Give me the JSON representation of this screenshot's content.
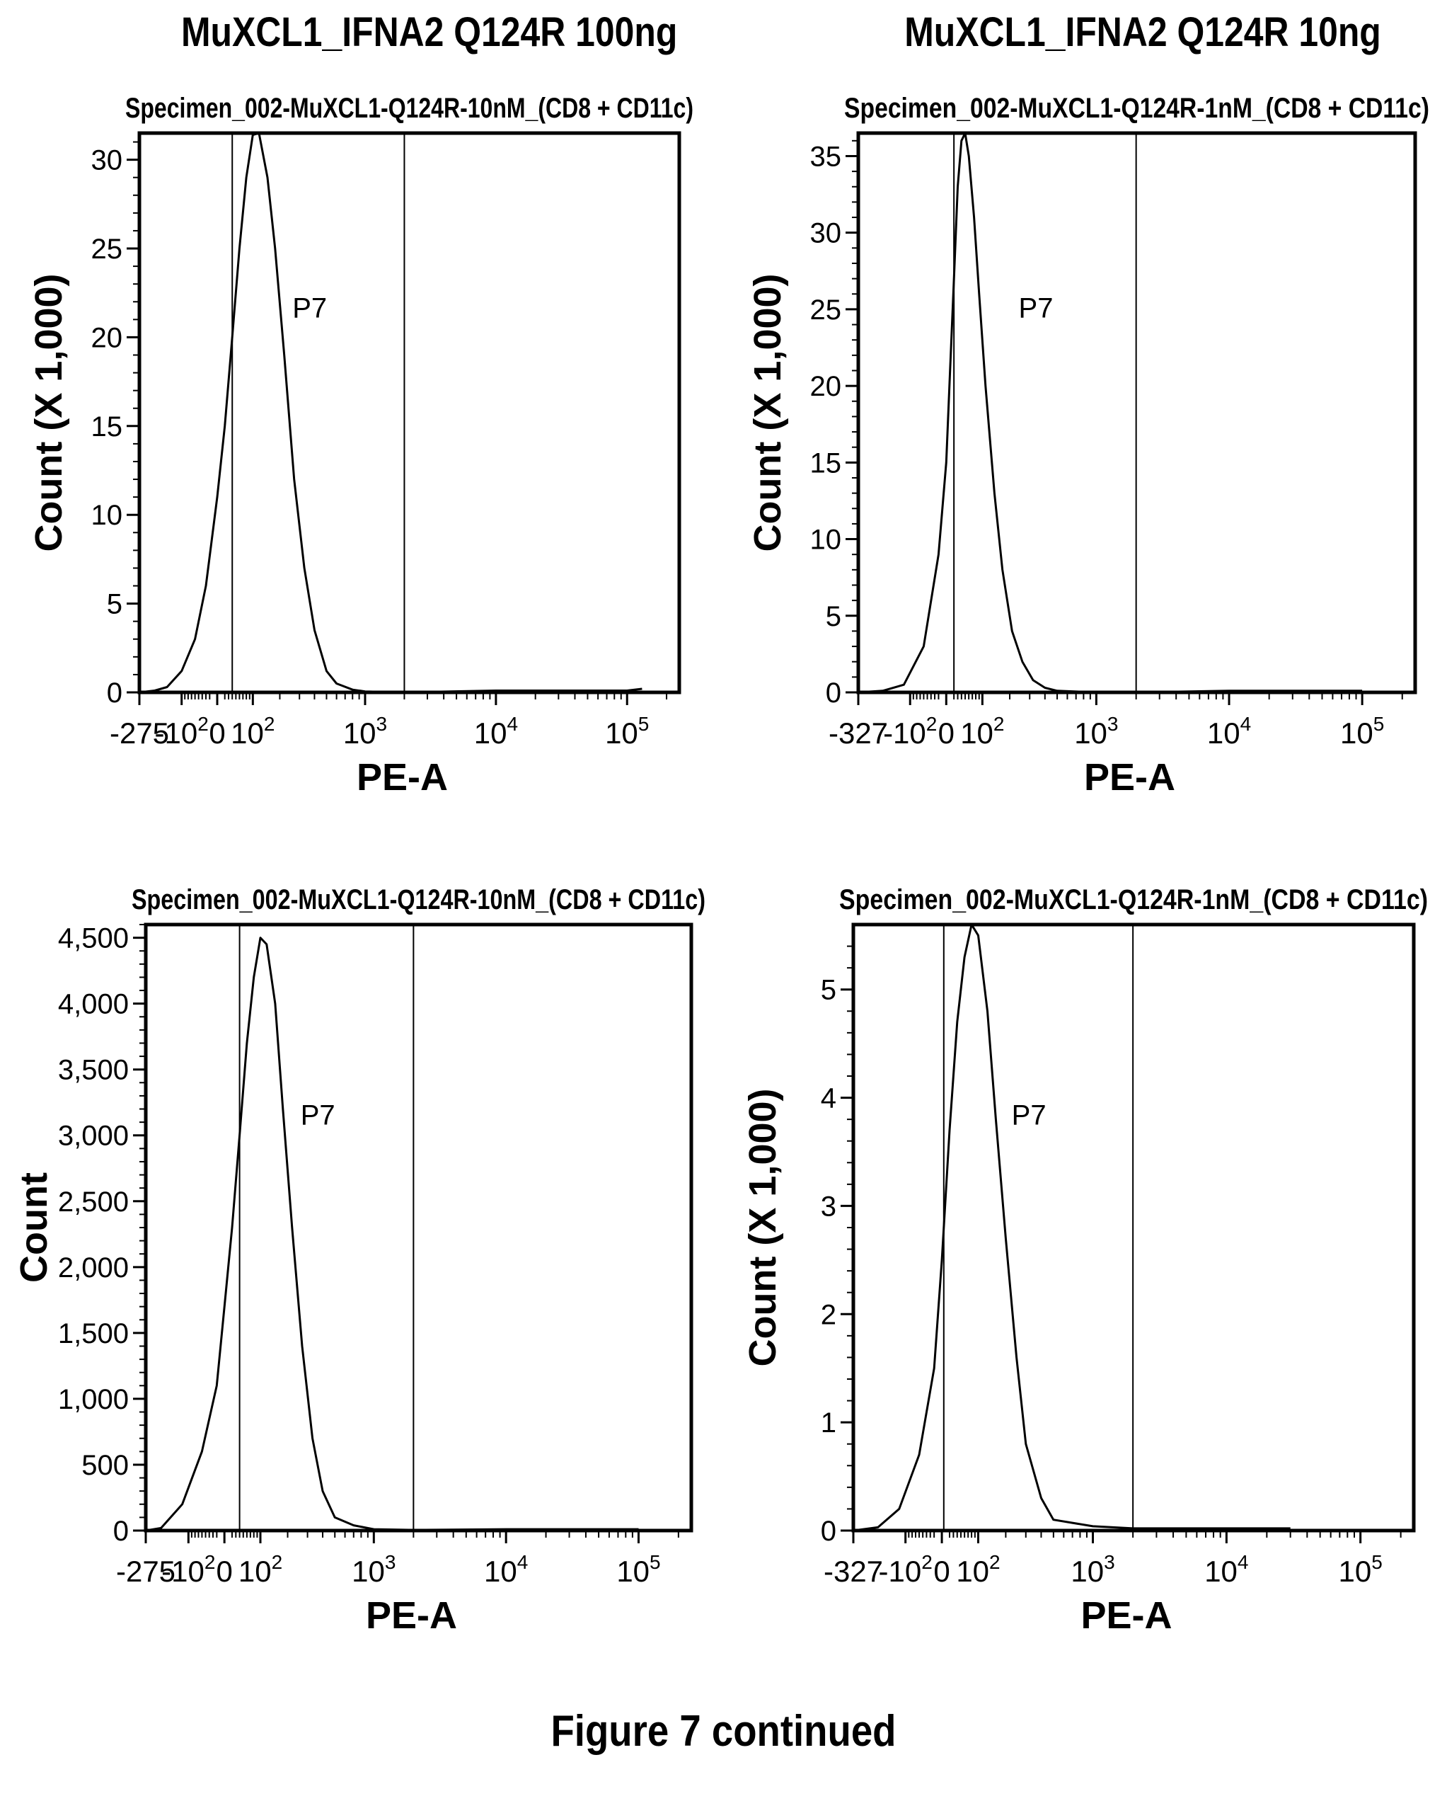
{
  "figure": {
    "column_titles": [
      "MuXCL1_IFNA2 Q124R 100ng",
      "MuXCL1_IFNA2 Q124R 10ng"
    ],
    "caption": "Figure 7 continued"
  },
  "chart_data": [
    {
      "type": "area",
      "title": "Specimen_002-MuXCL1-Q124R-10nM_(CD8 + CD11c)",
      "xlabel": "PE-A",
      "ylabel": "Count (X 1,000)",
      "x_scale": "biexponential",
      "x_tick_labels": [
        "-275",
        "-10^2",
        "0",
        "10^2",
        "10^3",
        "10^4",
        "10^5"
      ],
      "x_tick_values": [
        -275,
        -100,
        0,
        100,
        1000,
        10000,
        100000
      ],
      "xlim": [
        -275,
        250000
      ],
      "ylim": [
        0,
        31.5
      ],
      "y_ticks": [
        0,
        5,
        10,
        15,
        20,
        25,
        30
      ],
      "y_tick_labels": [
        "0",
        "5",
        "10",
        "15",
        "20",
        "25",
        "30"
      ],
      "gate": {
        "name": "P7",
        "x_range": [
          40,
          2000
        ]
      },
      "series": [
        {
          "x": [
            -275,
            -200,
            -150,
            -100,
            -60,
            -30,
            0,
            20,
            40,
            60,
            80,
            100,
            120,
            150,
            180,
            220,
            270,
            330,
            400,
            500,
            600,
            800,
            1000,
            2000,
            10000,
            100000,
            130000
          ],
          "y": [
            0,
            0.1,
            0.3,
            1.2,
            3,
            6,
            11,
            15,
            20,
            25,
            29,
            31.4,
            31.5,
            29,
            25,
            19,
            12,
            7,
            3.5,
            1.2,
            0.5,
            0.15,
            0.05,
            0,
            0.1,
            0.1,
            0.2
          ]
        }
      ]
    },
    {
      "type": "area",
      "title": "Specimen_002-MuXCL1-Q124R-1nM_(CD8 + CD11c)",
      "xlabel": "PE-A",
      "ylabel": "Count (X 1,000)",
      "x_scale": "biexponential",
      "x_tick_labels": [
        "-327",
        "-10^2",
        "0",
        "10^2",
        "10^3",
        "10^4",
        "10^5"
      ],
      "x_tick_values": [
        -327,
        -100,
        0,
        100,
        1000,
        10000,
        100000
      ],
      "xlim": [
        -327,
        250000
      ],
      "ylim": [
        0,
        36.5
      ],
      "y_ticks": [
        0,
        5,
        10,
        15,
        20,
        25,
        30,
        35
      ],
      "y_tick_labels": [
        "0",
        "5",
        "10",
        "15",
        "20",
        "25",
        "30",
        "35"
      ],
      "gate": {
        "name": "P7",
        "x_range": [
          20,
          2000
        ]
      },
      "series": [
        {
          "x": [
            -327,
            -200,
            -120,
            -60,
            -20,
            0,
            10,
            20,
            30,
            40,
            50,
            60,
            75,
            90,
            110,
            140,
            170,
            210,
            260,
            320,
            400,
            500,
            1000,
            2000,
            10000,
            100000
          ],
          "y": [
            0,
            0.1,
            0.5,
            3,
            9,
            15,
            21,
            27,
            33,
            36,
            36.5,
            35,
            31,
            26,
            20,
            13,
            8,
            4,
            2,
            0.8,
            0.3,
            0.1,
            0,
            0,
            0.1,
            0.1
          ]
        }
      ]
    },
    {
      "type": "area",
      "title": "Specimen_002-MuXCL1-Q124R-10nM_(CD8 + CD11c)",
      "xlabel": "PE-A",
      "ylabel": "Count",
      "x_scale": "biexponential",
      "x_tick_labels": [
        "-275",
        "-10^2",
        "0",
        "10^2",
        "10^3",
        "10^4",
        "10^5"
      ],
      "x_tick_values": [
        -275,
        -100,
        0,
        100,
        1000,
        10000,
        100000
      ],
      "xlim": [
        -275,
        250000
      ],
      "ylim": [
        0,
        4600
      ],
      "y_ticks": [
        0,
        500,
        1000,
        1500,
        2000,
        2500,
        3000,
        3500,
        4000,
        4500
      ],
      "y_tick_labels": [
        "0",
        "500",
        "1,000",
        "1,500",
        "2,000",
        "2,500",
        "3,000",
        "3,500",
        "4,000",
        "4,500"
      ],
      "gate": {
        "name": "P7",
        "x_range": [
          40,
          2000
        ]
      },
      "series": [
        {
          "x": [
            -275,
            -200,
            -120,
            -60,
            -20,
            0,
            20,
            40,
            60,
            80,
            100,
            120,
            150,
            180,
            220,
            270,
            330,
            400,
            500,
            700,
            1000,
            2000,
            10000,
            100000
          ],
          "y": [
            0,
            20,
            200,
            600,
            1100,
            1700,
            2300,
            3000,
            3700,
            4200,
            4500,
            4450,
            4000,
            3200,
            2300,
            1400,
            700,
            300,
            100,
            40,
            10,
            5,
            10,
            10
          ]
        }
      ]
    },
    {
      "type": "area",
      "title": "Specimen_002-MuXCL1-Q124R-1nM_(CD8 + CD11c)",
      "xlabel": "PE-A",
      "ylabel": "Count (X 1,000)",
      "x_scale": "biexponential",
      "x_tick_labels": [
        "-327",
        "-10^2",
        "0",
        "10^2",
        "10^3",
        "10^4",
        "10^5"
      ],
      "x_tick_values": [
        -327,
        -100,
        0,
        100,
        1000,
        10000,
        100000
      ],
      "xlim": [
        -327,
        250000
      ],
      "ylim": [
        0,
        5.6
      ],
      "y_ticks": [
        0,
        1,
        2,
        3,
        4,
        5
      ],
      "y_tick_labels": [
        "0",
        "1",
        "2",
        "3",
        "4",
        "5"
      ],
      "gate": {
        "name": "P7",
        "x_range": [
          5,
          2000
        ]
      },
      "series": [
        {
          "x": [
            -327,
            -200,
            -120,
            -60,
            -20,
            0,
            20,
            40,
            60,
            80,
            100,
            130,
            160,
            200,
            250,
            300,
            400,
            500,
            1000,
            2000,
            10000,
            30000
          ],
          "y": [
            0,
            0.03,
            0.2,
            0.7,
            1.5,
            2.5,
            3.7,
            4.7,
            5.3,
            5.6,
            5.5,
            4.8,
            3.8,
            2.7,
            1.6,
            0.8,
            0.3,
            0.1,
            0.04,
            0.02,
            0.02,
            0.02
          ]
        }
      ]
    }
  ]
}
